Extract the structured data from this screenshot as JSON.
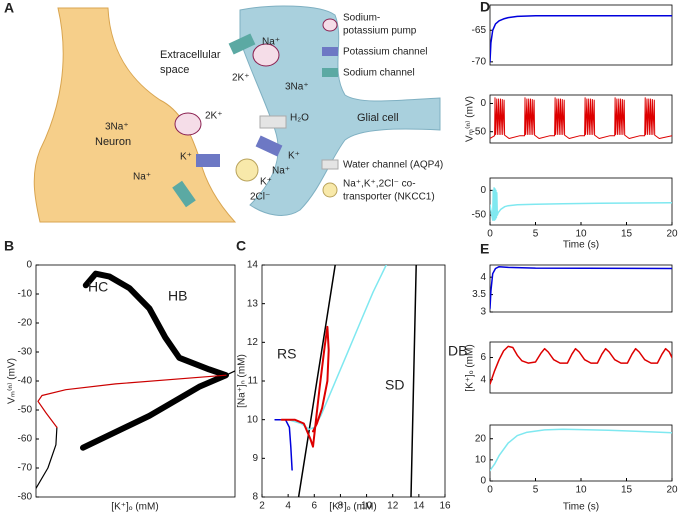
{
  "diagram": {
    "label": "A",
    "neuron": "Neuron",
    "glia": "Glial cell",
    "extracellular": [
      "Extracellular",
      "space"
    ],
    "legend": [
      [
        "Sodium-",
        "potassium pump"
      ],
      [
        "Potassium channel"
      ],
      [
        "Sodium channel"
      ],
      [
        "Water channel (AQP4)"
      ],
      [
        "Na⁺,K⁺,2Cl⁻ co-",
        "transporter (NKCC1)"
      ]
    ],
    "ions": [
      "Na⁺",
      "2K⁺",
      "3Na⁺",
      "3Na⁺",
      "2K⁺",
      "K⁺",
      "Na⁺",
      "H₂O",
      "K⁺",
      "Na⁺",
      "K⁺",
      "2Cl⁻"
    ]
  },
  "chart_data": [
    {
      "type": "line",
      "label": "B",
      "xlabel": "[K⁺]ₒ (mM)",
      "ylabel": "Vₘ⁽ⁿ⁾ (mV)",
      "annotations": [
        "HC",
        "HB"
      ],
      "xlim": [
        0,
        10
      ],
      "ylim": [
        -80,
        0
      ],
      "yticks": [
        -80,
        -70,
        -60,
        -50,
        -40,
        -30,
        -20,
        -10,
        0
      ],
      "series": [
        {
          "color": "#000000",
          "width": 6,
          "x": [
            2.5,
            3.0,
            3.7,
            4.7,
            5.7,
            6.5,
            7.2,
            8.7,
            9.55,
            8.2,
            5.7,
            2.36
          ],
          "values": [
            -7,
            -3,
            -4,
            -8,
            -15,
            -25,
            -32,
            -36,
            -38,
            -42,
            -52,
            -63
          ]
        },
        {
          "color": "#000000",
          "width": 1.2,
          "x": [
            0,
            0.6,
            1.0,
            1.05
          ],
          "values": [
            -77,
            -70,
            -62,
            -56
          ]
        },
        {
          "color": "#000000",
          "width": 1.2,
          "x": [
            9.55,
            10
          ],
          "values": [
            -38,
            -36.5
          ]
        },
        {
          "color": "#cc0000",
          "width": 1.2,
          "x": [
            1.05,
            0.5,
            0.1,
            0.3,
            1.5,
            4,
            9.55
          ],
          "values": [
            -56,
            -51,
            -47,
            -45,
            -43,
            -41,
            -38
          ]
        }
      ]
    },
    {
      "type": "line",
      "label": "C",
      "xlabel": "[K⁺]ₒ (mM)",
      "ylabel": "[Na⁺]ₙ (mM)",
      "annotations": [
        "RS",
        "SD",
        "DB"
      ],
      "xlim": [
        2,
        16
      ],
      "ylim": [
        8,
        14
      ],
      "xticks": [
        2,
        4,
        6,
        8,
        10,
        12,
        14,
        16
      ],
      "yticks": [
        8,
        9,
        10,
        11,
        12,
        13,
        14
      ],
      "series": [
        {
          "color": "#000000",
          "width": 1.5,
          "x": [
            4.8,
            5.5,
            6.2,
            6.9,
            7.6
          ],
          "values": [
            8,
            9.5,
            11,
            12.5,
            14
          ]
        },
        {
          "color": "#000000",
          "width": 1.5,
          "x": [
            13.4,
            13.6,
            13.8
          ],
          "values": [
            8,
            11,
            14
          ]
        },
        {
          "color": "#7fe8f0",
          "width": 1.5,
          "x": [
            3,
            4,
            5,
            5.6,
            6,
            6.5,
            7.5,
            8.5,
            9.5,
            10.5,
            11.5
          ],
          "values": [
            10,
            10,
            9.9,
            9.75,
            9.8,
            10.1,
            10.9,
            11.7,
            12.5,
            13.3,
            14
          ]
        },
        {
          "color": "#0000dd",
          "width": 1.5,
          "x": [
            3,
            3.8,
            4.1,
            4.2,
            4.3
          ],
          "values": [
            10,
            10,
            9.8,
            9.3,
            8.7
          ]
        },
        {
          "color": "#dd0000",
          "width": 2,
          "x": [
            3.5,
            4.5,
            5.2,
            5.7,
            5.9,
            6.1,
            6.4,
            6.8,
            7.0,
            7.1,
            7.0,
            6.6,
            6.2,
            5.9
          ],
          "values": [
            10,
            10,
            9.9,
            9.5,
            9.3,
            9.9,
            10.8,
            11.9,
            12.4,
            11.8,
            11.0,
            10.3,
            9.9,
            9.7
          ]
        }
      ]
    },
    {
      "type": "line",
      "label": "D",
      "xlim": [
        0,
        20
      ],
      "ylim": [
        -70.5,
        -61
      ],
      "yticks": [
        -70,
        -65
      ],
      "series": [
        {
          "color": "#0000dd",
          "width": 1.5,
          "x": [
            0,
            0.1,
            0.3,
            0.6,
            1,
            1.5,
            2,
            3,
            5,
            10,
            20
          ],
          "values": [
            -70,
            -67,
            -65,
            -64,
            -63.5,
            -63.2,
            -63,
            -62.8,
            -62.7,
            -62.7,
            -62.7
          ]
        }
      ]
    },
    {
      "type": "line",
      "ylabel": "Vₘ⁽ⁿ⁾ (mV)",
      "xlim": [
        0,
        20
      ],
      "ylim": [
        -70,
        15
      ],
      "yticks": [
        -50,
        0
      ],
      "series": [
        {
          "color": "#dd0000",
          "width": 1,
          "x": [
            0,
            0.5,
            0.55,
            0.6,
            0.75,
            0.8,
            0.95,
            1.0,
            1.15,
            1.2,
            1.35,
            1.4,
            1.55,
            1.6,
            2.1,
            3.3,
            3.8,
            3.85,
            3.9,
            4.05,
            4.1,
            4.25,
            4.3,
            4.45,
            4.5,
            4.65,
            4.7,
            4.85,
            4.9,
            5.4,
            6.6,
            7.1,
            7.15,
            7.2,
            7.35,
            7.4,
            7.55,
            7.6,
            7.75,
            7.8,
            7.95,
            8.0,
            8.15,
            8.2,
            8.7,
            9.9,
            10.4,
            10.45,
            10.5,
            10.65,
            10.7,
            10.85,
            10.9,
            11.05,
            11.1,
            11.25,
            11.3,
            11.45,
            11.5,
            12.0,
            13.2,
            13.7,
            13.75,
            13.8,
            13.95,
            14.0,
            14.15,
            14.2,
            14.35,
            14.4,
            14.55,
            14.6,
            14.75,
            14.8,
            15.3,
            16.5,
            17.0,
            17.05,
            17.1,
            17.25,
            17.3,
            17.45,
            17.5,
            17.65,
            17.7,
            17.85,
            17.9,
            18.05,
            18.1,
            18.6,
            20
          ],
          "values": [
            -62,
            -57,
            10,
            -55,
            8,
            -55,
            8,
            -55,
            8,
            -55,
            7,
            -55,
            6,
            -56,
            -62,
            -57,
            -57,
            10,
            -55,
            8,
            -55,
            8,
            -55,
            8,
            -55,
            7,
            -55,
            6,
            -56,
            -62,
            -57,
            -57,
            10,
            -55,
            8,
            -55,
            8,
            -55,
            8,
            -55,
            7,
            -55,
            6,
            -56,
            -62,
            -57,
            -57,
            10,
            -55,
            8,
            -55,
            8,
            -55,
            8,
            -55,
            7,
            -55,
            6,
            -56,
            -62,
            -57,
            -57,
            10,
            -55,
            8,
            -55,
            8,
            -55,
            8,
            -55,
            7,
            -55,
            6,
            -56,
            -62,
            -57,
            -57,
            10,
            -55,
            8,
            -55,
            8,
            -55,
            8,
            -55,
            7,
            -55,
            6,
            -56,
            -62,
            -57
          ]
        }
      ]
    },
    {
      "type": "line",
      "xlabel": "Time (s)",
      "xlim": [
        0,
        20
      ],
      "ylim": [
        -70,
        25
      ],
      "xticks": [
        0,
        5,
        10,
        15,
        20
      ],
      "yticks": [
        -50,
        0
      ],
      "series": [
        {
          "color": "#7fe8f0",
          "width": 1.5,
          "x": [
            0,
            0.3,
            0.35,
            0.4,
            0.45,
            0.5,
            0.55,
            0.6,
            0.65,
            0.7,
            0.75,
            0.8,
            0.9,
            1.2,
            1.6,
            2,
            3,
            5,
            8,
            12,
            16,
            20
          ],
          "values": [
            -30,
            -60,
            0,
            -60,
            5,
            -60,
            3,
            -58,
            0,
            -55,
            -5,
            -50,
            -45,
            -38,
            -33,
            -31,
            -29,
            -28,
            -27,
            -26,
            -25.5,
            -25
          ]
        }
      ]
    },
    {
      "type": "line",
      "label": "E",
      "xlim": [
        0,
        20
      ],
      "ylim": [
        3,
        4.35
      ],
      "yticks": [
        3,
        3.5,
        4
      ],
      "series": [
        {
          "color": "#0000dd",
          "width": 1.5,
          "x": [
            0,
            0.1,
            0.3,
            0.6,
            1,
            2,
            5,
            20
          ],
          "values": [
            3.1,
            3.6,
            4.1,
            4.25,
            4.3,
            4.28,
            4.26,
            4.25
          ]
        }
      ]
    },
    {
      "type": "line",
      "ylabel": "[K⁺]ₒ (mM)",
      "xlim": [
        0,
        20
      ],
      "ylim": [
        2.8,
        7.4
      ],
      "yticks": [
        4,
        6
      ],
      "series": [
        {
          "color": "#dd0000",
          "width": 1.5,
          "x": [
            0,
            0.5,
            1,
            1.5,
            2,
            2.5,
            3,
            3.5,
            4.2,
            5,
            5.6,
            6,
            6.4,
            7,
            7.7,
            8.5,
            9,
            9.4,
            9.8,
            10.4,
            11.1,
            11.8,
            12.3,
            12.7,
            13.1,
            13.7,
            14.4,
            15.1,
            15.6,
            16,
            16.4,
            17,
            17.7,
            18.4,
            18.9,
            19.3,
            19.7,
            20
          ],
          "values": [
            3.6,
            4.8,
            5.8,
            6.6,
            7.0,
            6.9,
            6.2,
            5.7,
            5.5,
            5.6,
            6.4,
            6.8,
            6.5,
            5.8,
            5.5,
            5.5,
            6.3,
            6.8,
            6.5,
            5.8,
            5.5,
            5.5,
            6.3,
            6.8,
            6.5,
            5.8,
            5.5,
            5.5,
            6.3,
            6.8,
            6.5,
            5.8,
            5.5,
            5.5,
            6.3,
            6.8,
            6.5,
            6.0
          ]
        }
      ]
    },
    {
      "type": "line",
      "xlabel": "Time (s)",
      "xlim": [
        0,
        20
      ],
      "ylim": [
        0,
        26.5
      ],
      "xticks": [
        0,
        5,
        10,
        15,
        20
      ],
      "yticks": [
        0,
        10,
        20
      ],
      "series": [
        {
          "color": "#7fe8f0",
          "width": 1.5,
          "x": [
            0,
            0.5,
            1,
            2,
            3,
            4,
            6,
            8,
            10,
            13,
            16,
            20
          ],
          "values": [
            5,
            8,
            12,
            18,
            21.5,
            23,
            24.2,
            24.5,
            24.3,
            24,
            23.5,
            22.8
          ]
        }
      ]
    }
  ]
}
